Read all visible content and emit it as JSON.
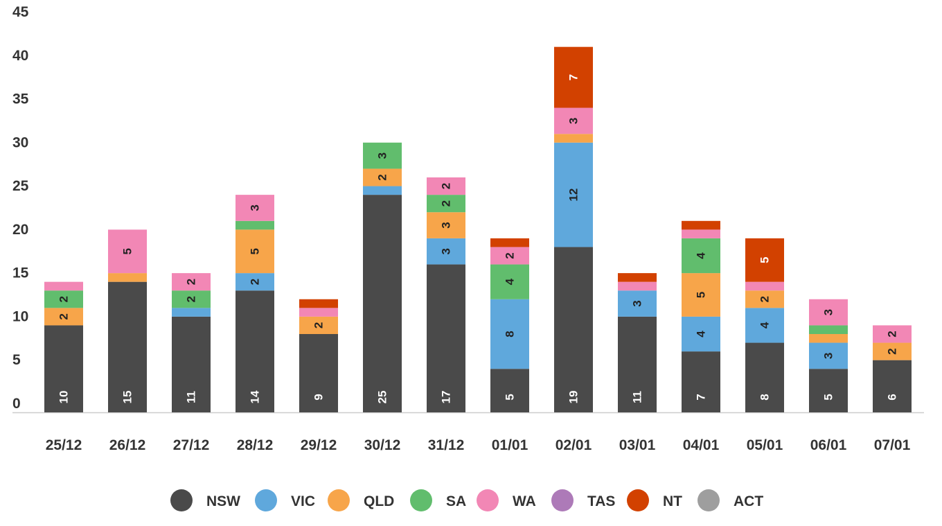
{
  "chart_data": {
    "type": "bar",
    "stacked": true,
    "categories": [
      "25/12",
      "26/12",
      "27/12",
      "28/12",
      "29/12",
      "30/12",
      "31/12",
      "01/01",
      "02/01",
      "03/01",
      "04/01",
      "05/01",
      "06/01",
      "07/01"
    ],
    "ylim": [
      0,
      45
    ],
    "yticks": [
      0,
      5,
      10,
      15,
      20,
      25,
      30,
      35,
      40,
      45
    ],
    "legend_position": "bottom",
    "grid": false,
    "series": [
      {
        "name": "NSW",
        "color": "#4a4a4a",
        "label_color": "#ffffff",
        "values": [
          10,
          15,
          11,
          14,
          9,
          25,
          17,
          5,
          19,
          11,
          7,
          8,
          5,
          6
        ]
      },
      {
        "name": "VIC",
        "color": "#5fa8dc",
        "label_color": "#222222",
        "values": [
          0,
          0,
          1,
          2,
          0,
          1,
          3,
          8,
          12,
          3,
          4,
          4,
          3,
          0
        ]
      },
      {
        "name": "QLD",
        "color": "#f7a54a",
        "label_color": "#222222",
        "values": [
          2,
          1,
          0,
          5,
          2,
          2,
          3,
          0,
          1,
          0,
          5,
          2,
          1,
          2
        ]
      },
      {
        "name": "SA",
        "color": "#61bd6d",
        "label_color": "#222222",
        "values": [
          2,
          0,
          2,
          1,
          0,
          3,
          2,
          4,
          0,
          0,
          4,
          0,
          1,
          0
        ]
      },
      {
        "name": "WA",
        "color": "#f287b5",
        "label_color": "#222222",
        "values": [
          1,
          5,
          2,
          3,
          1,
          0,
          2,
          2,
          3,
          1,
          1,
          1,
          3,
          2
        ]
      },
      {
        "name": "TAS",
        "color": "#ad7ab8",
        "label_color": "#222222",
        "values": [
          0,
          0,
          0,
          0,
          0,
          0,
          0,
          0,
          0,
          0,
          0,
          0,
          0,
          0
        ]
      },
      {
        "name": "NT",
        "color": "#d24100",
        "label_color": "#ffffff",
        "values": [
          0,
          0,
          0,
          0,
          1,
          0,
          0,
          1,
          7,
          1,
          1,
          5,
          0,
          0
        ]
      },
      {
        "name": "ACT",
        "color": "#9e9e9e",
        "label_color": "#222222",
        "values": [
          0,
          0,
          0,
          0,
          0,
          0,
          0,
          0,
          0,
          0,
          0,
          0,
          0,
          0
        ]
      }
    ]
  }
}
